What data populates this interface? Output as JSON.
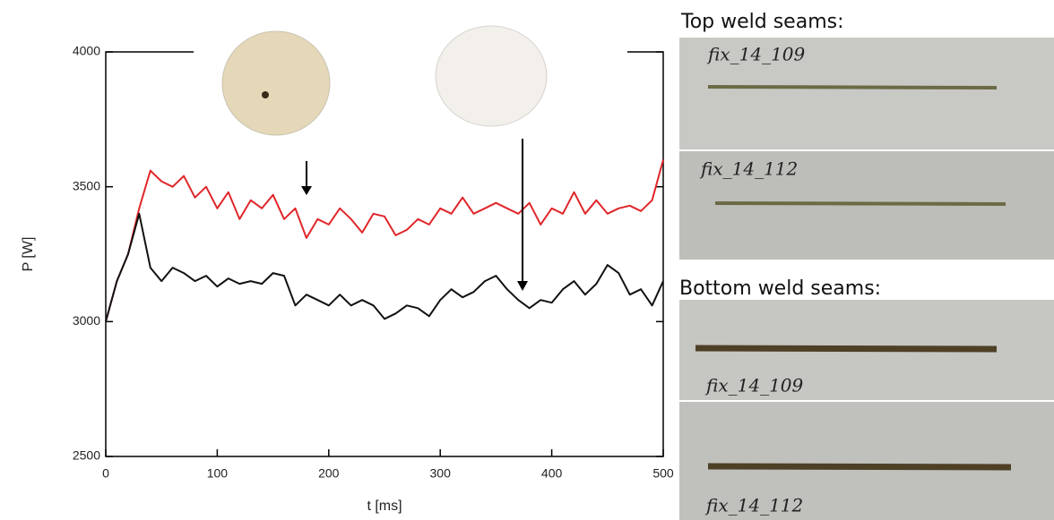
{
  "chart_data": {
    "type": "line",
    "x": [
      0,
      10,
      20,
      30,
      40,
      50,
      60,
      70,
      80,
      90,
      100,
      110,
      120,
      130,
      140,
      150,
      160,
      170,
      180,
      190,
      200,
      210,
      220,
      230,
      240,
      250,
      260,
      270,
      280,
      290,
      300,
      310,
      320,
      330,
      340,
      350,
      360,
      370,
      380,
      390,
      400,
      410,
      420,
      430,
      440,
      450,
      460,
      470,
      480,
      490,
      500
    ],
    "series": [
      {
        "color": "#e0262a",
        "values": [
          3000,
          3150,
          3250,
          3420,
          3560,
          3520,
          3500,
          3540,
          3460,
          3500,
          3420,
          3480,
          3380,
          3450,
          3420,
          3470,
          3380,
          3420,
          3310,
          3380,
          3360,
          3420,
          3380,
          3330,
          3400,
          3390,
          3320,
          3340,
          3380,
          3360,
          3420,
          3400,
          3460,
          3400,
          3420,
          3440,
          3420,
          3400,
          3440,
          3360,
          3420,
          3400,
          3480,
          3400,
          3450,
          3400,
          3420,
          3430,
          3410,
          3450,
          3600
        ]
      },
      {
        "color": "#111111",
        "values": [
          3000,
          3150,
          3250,
          3400,
          3200,
          3150,
          3200,
          3180,
          3150,
          3170,
          3130,
          3160,
          3140,
          3150,
          3140,
          3180,
          3170,
          3060,
          3100,
          3080,
          3060,
          3100,
          3060,
          3080,
          3060,
          3010,
          3030,
          3060,
          3050,
          3020,
          3080,
          3120,
          3090,
          3110,
          3150,
          3170,
          3120,
          3080,
          3050,
          3080,
          3070,
          3120,
          3150,
          3100,
          3140,
          3210,
          3180,
          3100,
          3120,
          3060,
          3150
        ]
      }
    ],
    "xlabel": "t [ms]",
    "ylabel": "P [W]",
    "xlim": [
      0,
      500
    ],
    "ylim": [
      2500,
      4000
    ],
    "xticks": [
      0,
      100,
      200,
      300,
      400,
      500
    ],
    "yticks": [
      2500,
      3000,
      3500,
      4000
    ],
    "photos": {
      "top_title": "Top weld seams:",
      "bottom_title": "Bottom weld seams:",
      "labels": [
        "fix_14_109",
        "fix_14_112",
        "fix_14_109",
        "fix_14_112"
      ]
    }
  }
}
